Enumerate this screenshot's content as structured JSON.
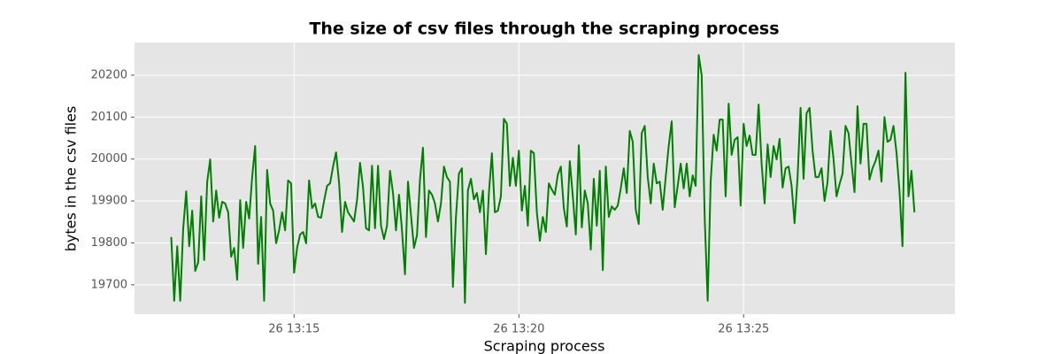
{
  "chart_data": {
    "type": "line",
    "title": "The size of csv files through the scraping process",
    "xlabel": "Scraping process",
    "ylabel": "bytes in the csv files",
    "color": "#008000",
    "grid": true,
    "xlim": [
      "26 13:11:27",
      "26 13:29:42"
    ],
    "xticks": [
      "26 13:15",
      "26 13:20",
      "26 13:25"
    ],
    "ylim": [
      19630,
      20278
    ],
    "yticks": [
      19700,
      19800,
      19900,
      20000,
      20100,
      20200
    ],
    "x": [
      "26 13:12:16",
      "26 13:12:20",
      "26 13:12:24",
      "26 13:12:28",
      "26 13:12:32",
      "26 13:12:36",
      "26 13:12:40",
      "26 13:12:44",
      "26 13:12:48",
      "26 13:12:52",
      "26 13:12:56",
      "26 13:13:00",
      "26 13:13:04",
      "26 13:13:08",
      "26 13:13:12",
      "26 13:13:16",
      "26 13:13:20",
      "26 13:13:24",
      "26 13:13:28",
      "26 13:13:32",
      "26 13:13:36",
      "26 13:13:40",
      "26 13:13:44",
      "26 13:13:48",
      "26 13:13:52",
      "26 13:13:56",
      "26 13:14:00",
      "26 13:14:04",
      "26 13:14:08",
      "26 13:14:12",
      "26 13:14:16",
      "26 13:14:20",
      "26 13:14:24",
      "26 13:14:28",
      "26 13:14:32",
      "26 13:14:36",
      "26 13:14:40",
      "26 13:14:44",
      "26 13:14:48",
      "26 13:14:52",
      "26 13:14:56",
      "26 13:15:00",
      "26 13:15:04",
      "26 13:15:08",
      "26 13:15:12",
      "26 13:15:16",
      "26 13:15:20",
      "26 13:15:24",
      "26 13:15:28",
      "26 13:15:32",
      "26 13:15:36",
      "26 13:15:40",
      "26 13:15:44",
      "26 13:15:48",
      "26 13:15:52",
      "26 13:15:56",
      "26 13:16:00",
      "26 13:16:04",
      "26 13:16:08",
      "26 13:16:12",
      "26 13:16:16",
      "26 13:16:20",
      "26 13:16:24",
      "26 13:16:28",
      "26 13:16:32",
      "26 13:16:36",
      "26 13:16:40",
      "26 13:16:44",
      "26 13:16:48",
      "26 13:16:52",
      "26 13:16:56",
      "26 13:17:00",
      "26 13:17:04",
      "26 13:17:08",
      "26 13:17:12",
      "26 13:17:16",
      "26 13:17:20",
      "26 13:17:24",
      "26 13:17:28",
      "26 13:17:32",
      "26 13:17:36",
      "26 13:17:40",
      "26 13:17:44",
      "26 13:17:48",
      "26 13:17:52",
      "26 13:17:56",
      "26 13:18:00",
      "26 13:18:04",
      "26 13:18:08",
      "26 13:18:12",
      "26 13:18:16",
      "26 13:18:20",
      "26 13:18:24",
      "26 13:18:28",
      "26 13:18:32",
      "26 13:18:36",
      "26 13:18:40",
      "26 13:18:44",
      "26 13:18:48",
      "26 13:18:52",
      "26 13:18:56",
      "26 13:19:00",
      "26 13:19:04",
      "26 13:19:08",
      "26 13:19:12",
      "26 13:19:16",
      "26 13:19:20",
      "26 13:19:24",
      "26 13:19:28",
      "26 13:19:32",
      "26 13:19:36",
      "26 13:19:40",
      "26 13:19:44",
      "26 13:19:48",
      "26 13:19:52",
      "26 13:19:56",
      "26 13:20:00",
      "26 13:20:04",
      "26 13:20:08",
      "26 13:20:12",
      "26 13:20:16",
      "26 13:20:20",
      "26 13:20:24",
      "26 13:20:28",
      "26 13:20:32",
      "26 13:20:36",
      "26 13:20:40",
      "26 13:20:44",
      "26 13:20:48",
      "26 13:20:52",
      "26 13:20:56",
      "26 13:21:00",
      "26 13:21:04",
      "26 13:21:08",
      "26 13:21:12",
      "26 13:21:16",
      "26 13:21:20",
      "26 13:21:24",
      "26 13:21:28",
      "26 13:21:32",
      "26 13:21:36",
      "26 13:21:40",
      "26 13:21:44",
      "26 13:21:48",
      "26 13:21:52",
      "26 13:21:56",
      "26 13:22:00",
      "26 13:22:04",
      "26 13:22:08",
      "26 13:22:12",
      "26 13:22:16",
      "26 13:22:20",
      "26 13:22:24",
      "26 13:22:28",
      "26 13:22:32",
      "26 13:22:36",
      "26 13:22:40",
      "26 13:22:44",
      "26 13:22:48",
      "26 13:22:52",
      "26 13:22:56",
      "26 13:23:00",
      "26 13:23:04",
      "26 13:23:08",
      "26 13:23:12",
      "26 13:23:16",
      "26 13:23:20",
      "26 13:23:24",
      "26 13:23:28",
      "26 13:23:32",
      "26 13:23:36",
      "26 13:23:40",
      "26 13:23:44",
      "26 13:23:48",
      "26 13:23:52",
      "26 13:23:56",
      "26 13:24:00",
      "26 13:24:04",
      "26 13:24:08",
      "26 13:24:12",
      "26 13:24:16",
      "26 13:24:20",
      "26 13:24:24",
      "26 13:24:28",
      "26 13:24:32",
      "26 13:24:36",
      "26 13:24:40",
      "26 13:24:44",
      "26 13:24:48",
      "26 13:24:52",
      "26 13:24:56",
      "26 13:25:00",
      "26 13:25:04",
      "26 13:25:08",
      "26 13:25:12",
      "26 13:25:16",
      "26 13:25:20",
      "26 13:25:24",
      "26 13:25:28",
      "26 13:25:32",
      "26 13:25:36",
      "26 13:25:40",
      "26 13:25:44",
      "26 13:25:48",
      "26 13:25:52",
      "26 13:25:56",
      "26 13:26:00",
      "26 13:26:04",
      "26 13:26:08",
      "26 13:26:12",
      "26 13:26:16",
      "26 13:26:20",
      "26 13:26:24",
      "26 13:26:28",
      "26 13:26:32",
      "26 13:26:36",
      "26 13:26:40",
      "26 13:26:44",
      "26 13:26:48",
      "26 13:26:52",
      "26 13:26:56",
      "26 13:27:00",
      "26 13:27:04",
      "26 13:27:08",
      "26 13:27:12",
      "26 13:27:16",
      "26 13:27:20",
      "26 13:27:24",
      "26 13:27:28",
      "26 13:27:32",
      "26 13:27:36",
      "26 13:27:40",
      "26 13:27:44",
      "26 13:27:48",
      "26 13:27:52",
      "26 13:27:56",
      "26 13:28:00",
      "26 13:28:04",
      "26 13:28:08",
      "26 13:28:12",
      "26 13:28:16",
      "26 13:28:20",
      "26 13:28:24",
      "26 13:28:28",
      "26 13:28:32",
      "26 13:28:36",
      "26 13:28:40",
      "26 13:28:44",
      "26 13:28:48"
    ],
    "values": [
      19814,
      19662,
      19792,
      19662,
      19835,
      19923,
      19792,
      19877,
      19733,
      19754,
      19911,
      19759,
      19946,
      19999,
      19851,
      19925,
      19860,
      19898,
      19894,
      19873,
      19767,
      19788,
      19712,
      19902,
      19788,
      19898,
      19858,
      19957,
      20031,
      19750,
      19862,
      19662,
      19974,
      19894,
      19877,
      19799,
      19830,
      19873,
      19830,
      19949,
      19942,
      19729,
      19788,
      19820,
      19826,
      19799,
      19949,
      19883,
      19894,
      19862,
      19860,
      19900,
      19936,
      19942,
      19982,
      20016,
      19944,
      19826,
      19898,
      19873,
      19862,
      19851,
      19902,
      19991,
      19932,
      19835,
      19830,
      19984,
      19835,
      19984,
      19841,
      19809,
      19841,
      19972,
      19919,
      19830,
      19915,
      19830,
      19725,
      19946,
      19866,
      19788,
      19818,
      19951,
      20027,
      19814,
      19925,
      19915,
      19894,
      19851,
      19894,
      19982,
      19957,
      19946,
      19695,
      19862,
      19965,
      19978,
      19657,
      19925,
      19953,
      19904,
      19919,
      19873,
      19925,
      19773,
      19919,
      20014,
      19873,
      19877,
      19911,
      20096,
      20084,
      19936,
      20003,
      19936,
      20020,
      19877,
      19936,
      19841,
      20020,
      20014,
      19873,
      19805,
      19862,
      19826,
      19942,
      19927,
      19915,
      19963,
      19982,
      19883,
      19839,
      19995,
      19911,
      19820,
      20033,
      19837,
      19925,
      19894,
      19784,
      19953,
      19841,
      19972,
      19735,
      19982,
      19862,
      19887,
      19879,
      19889,
      19930,
      19978,
      19919,
      20067,
      20041,
      19879,
      19845,
      20062,
      20079,
      19957,
      19894,
      19989,
      19942,
      19946,
      19879,
      19957,
      20031,
      20090,
      19885,
      19936,
      19989,
      19930,
      19989,
      19911,
      19961,
      19936,
      20248,
      20200,
      19862,
      19662,
      19946,
      20058,
      20020,
      20094,
      20094,
      19911,
      20132,
      20010,
      20046,
      20052,
      19889,
      20084,
      20031,
      20056,
      20010,
      20010,
      20130,
      19989,
      19894,
      20035,
      19957,
      20031,
      19999,
      20048,
      19932,
      19978,
      19982,
      19936,
      19847,
      19957,
      20122,
      19953,
      20109,
      20122,
      20020,
      19957,
      19957,
      19978,
      19900,
      19945,
      20067,
      20000,
      19911,
      19940,
      19965,
      20079,
      20062,
      19989,
      19921,
      20126,
      19989,
      20084,
      20084,
      19951,
      19978,
      19995,
      20020,
      19946,
      20100,
      20041,
      20046,
      20079,
      20016,
      19925,
      19792,
      20206,
      19911,
      19972,
      19873
    ]
  }
}
